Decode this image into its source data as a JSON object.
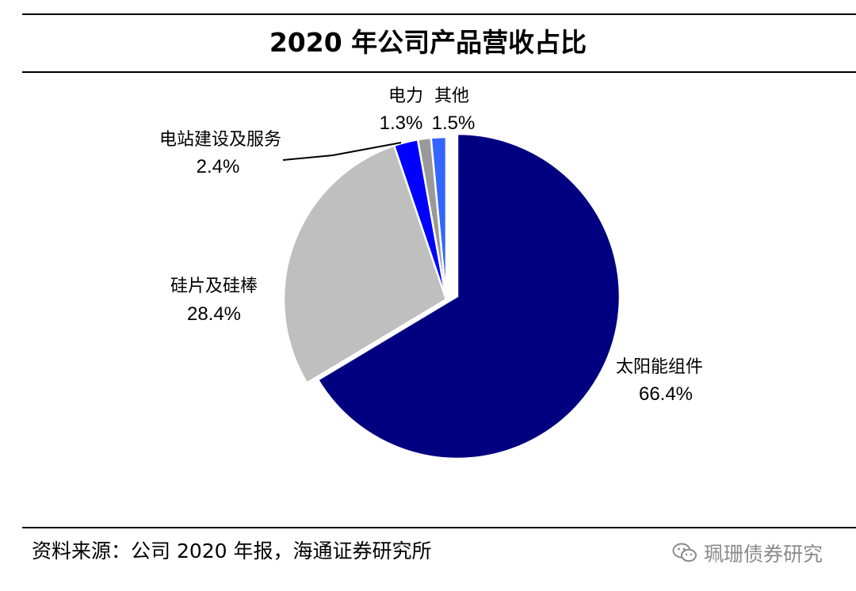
{
  "chart_data": {
    "type": "pie",
    "title": "2020 年公司产品营收占比",
    "slices": [
      {
        "label": "太阳能组件",
        "value": 66.4,
        "value_label": "66.4%",
        "color": "#000080"
      },
      {
        "label": "硅片及硅棒",
        "value": 28.4,
        "value_label": "28.4%",
        "color": "#bfbfbf"
      },
      {
        "label": "电站建设及服务",
        "value": 2.4,
        "value_label": "2.4%",
        "color": "#0000ff"
      },
      {
        "label": "电力",
        "value": 1.3,
        "value_label": "1.3%",
        "color": "#999999"
      },
      {
        "label": "其他",
        "value": 1.5,
        "value_label": "1.5%",
        "color": "#3366ff"
      }
    ],
    "start_angle": "12 o'clock",
    "direction": "clockwise",
    "exploded": true
  },
  "footer": {
    "source": "资料来源：公司 2020 年报，海通证券研究所",
    "watermark": "珮珊债券研究",
    "watermark_icon": "wechat-icon"
  }
}
